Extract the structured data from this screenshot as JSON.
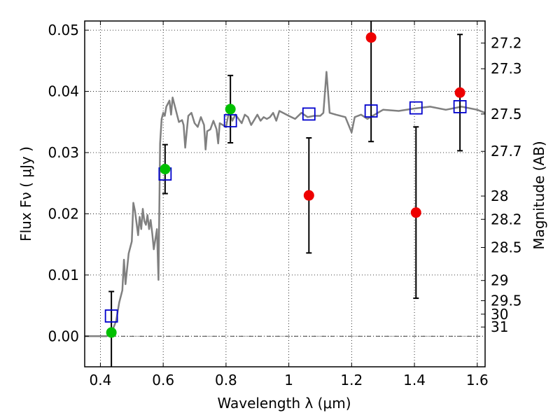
{
  "chart_data": {
    "type": "scatter",
    "xlabel": "Wavelength  λ (μm)",
    "ylabel": "Flux  Fν  ( μJy )",
    "y2label": "Magnitude (AB)",
    "xlim": [
      0.35,
      1.625
    ],
    "ylim": [
      -0.005,
      0.0515
    ],
    "xticks": [
      0.4,
      0.6,
      0.8,
      1.0,
      1.2,
      1.4,
      1.6
    ],
    "xtick_labels": [
      "0.4",
      "0.6",
      "0.8",
      "1",
      "1.2",
      "1.4",
      "1.6"
    ],
    "yticks": [
      0.0,
      0.01,
      0.02,
      0.03,
      0.04,
      0.05
    ],
    "ytick_labels": [
      "0.00",
      "0.01",
      "0.02",
      "0.03",
      "0.04",
      "0.05"
    ],
    "y2ticks": [
      {
        "label": "27.2",
        "flux": 0.0479
      },
      {
        "label": "27.3",
        "flux": 0.0437
      },
      {
        "label": "27.5",
        "flux": 0.0363
      },
      {
        "label": "27.7",
        "flux": 0.0302
      },
      {
        "label": "28",
        "flux": 0.0229
      },
      {
        "label": "28.2",
        "flux": 0.0191
      },
      {
        "label": "28.5",
        "flux": 0.0145
      },
      {
        "label": "29",
        "flux": 0.0091
      },
      {
        "label": "29.5",
        "flux": 0.0058
      },
      {
        "label": "30",
        "flux": 0.0036
      },
      {
        "label": "31",
        "flux": 0.0015
      }
    ],
    "grid": true,
    "model_spectrum": {
      "color": "#808080",
      "x": [
        0.35,
        0.42,
        0.435,
        0.45,
        0.46,
        0.47,
        0.475,
        0.48,
        0.49,
        0.5,
        0.505,
        0.51,
        0.52,
        0.525,
        0.53,
        0.535,
        0.54,
        0.545,
        0.55,
        0.555,
        0.56,
        0.565,
        0.57,
        0.58,
        0.585,
        0.59,
        0.595,
        0.6,
        0.605,
        0.61,
        0.62,
        0.625,
        0.63,
        0.64,
        0.645,
        0.65,
        0.66,
        0.665,
        0.67,
        0.675,
        0.68,
        0.69,
        0.7,
        0.71,
        0.72,
        0.73,
        0.735,
        0.74,
        0.75,
        0.76,
        0.77,
        0.775,
        0.78,
        0.8,
        0.81,
        0.82,
        0.83,
        0.84,
        0.85,
        0.86,
        0.87,
        0.88,
        0.9,
        0.91,
        0.92,
        0.93,
        0.94,
        0.95,
        0.96,
        0.97,
        1.0,
        1.02,
        1.04,
        1.06,
        1.08,
        1.1,
        1.11,
        1.12,
        1.13,
        1.15,
        1.18,
        1.2,
        1.21,
        1.23,
        1.25,
        1.3,
        1.35,
        1.4,
        1.45,
        1.5,
        1.55,
        1.6,
        1.625
      ],
      "y": [
        0.0,
        0.0,
        0.0005,
        0.0025,
        0.0055,
        0.0075,
        0.0125,
        0.0085,
        0.0135,
        0.0155,
        0.0218,
        0.0205,
        0.0165,
        0.0195,
        0.0175,
        0.0208,
        0.0188,
        0.0182,
        0.0198,
        0.0175,
        0.019,
        0.0168,
        0.0142,
        0.0175,
        0.0092,
        0.0315,
        0.0355,
        0.0365,
        0.036,
        0.0375,
        0.0385,
        0.0362,
        0.039,
        0.037,
        0.036,
        0.035,
        0.0353,
        0.0345,
        0.0308,
        0.0335,
        0.036,
        0.0365,
        0.0348,
        0.0342,
        0.0358,
        0.0345,
        0.0305,
        0.0335,
        0.0338,
        0.0352,
        0.0338,
        0.0315,
        0.0348,
        0.0342,
        0.0368,
        0.0352,
        0.0362,
        0.0355,
        0.0348,
        0.0362,
        0.0358,
        0.0345,
        0.0362,
        0.0352,
        0.0358,
        0.0355,
        0.0358,
        0.0365,
        0.0352,
        0.0368,
        0.036,
        0.0355,
        0.0365,
        0.0358,
        0.036,
        0.036,
        0.0365,
        0.0432,
        0.0365,
        0.0362,
        0.0358,
        0.0333,
        0.0358,
        0.0362,
        0.0355,
        0.037,
        0.0368,
        0.0372,
        0.0375,
        0.037,
        0.0375,
        0.037,
        0.0365
      ]
    },
    "model_band_flux": {
      "marker": "open-square",
      "color": "#0000cc",
      "x": [
        0.435,
        0.606,
        0.814,
        1.064,
        1.262,
        1.405,
        1.545
      ],
      "y": [
        0.0033,
        0.0265,
        0.0352,
        0.0363,
        0.0368,
        0.0373,
        0.0375
      ]
    },
    "detections": {
      "marker": "filled-circle",
      "color": "#00c000",
      "x": [
        0.435,
        0.606,
        0.814
      ],
      "y": [
        0.0006,
        0.0273,
        0.0371
      ],
      "err": [
        0.0067,
        0.004,
        0.0055
      ]
    },
    "non_detections": {
      "marker": "filled-circle",
      "color": "#ee0000",
      "x": [
        1.064,
        1.262,
        1.405,
        1.545
      ],
      "y": [
        0.023,
        0.0488,
        0.0202,
        0.0398
      ],
      "err": [
        0.0094,
        0.017,
        0.014,
        0.0095
      ]
    }
  }
}
